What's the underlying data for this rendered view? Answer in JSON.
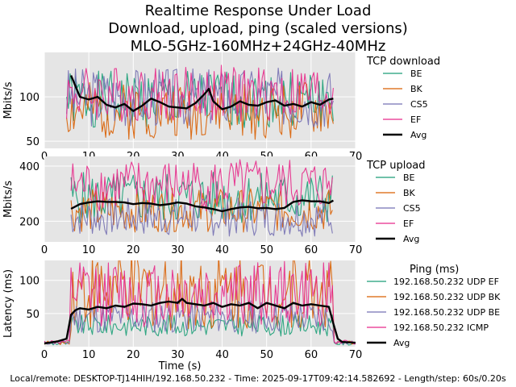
{
  "title_lines": [
    "Realtime Response Under Load",
    "Download, upload, ping (scaled versions)",
    "MLO-5GHz-160MHz+24GHz-40MHz"
  ],
  "footer": "Local/remote: DESKTOP-TJ14HIH/192.168.50.232 - Time: 2025-09-17T09:42:14.582692 - Length/step: 60s/0.20s",
  "colors": {
    "BE": "#1b9e77",
    "BK": "#d95f02",
    "CS5": "#7570b3",
    "EF": "#e7298a",
    "Avg": "#000000",
    "plot_bg": "#e5e5e5",
    "grid": "#ffffff"
  },
  "chart_data": [
    {
      "type": "line",
      "ylabel": "Mbits/s",
      "xlabel": "",
      "xlim": [
        0,
        70
      ],
      "ylim": [
        42,
        150
      ],
      "xticks": [
        0,
        10,
        20,
        30,
        40,
        50,
        60,
        70
      ],
      "yticks": [
        50,
        100
      ],
      "grid": true,
      "legend": {
        "title": "TCP download",
        "placement": "right"
      },
      "series": [
        {
          "name": "BE",
          "color": "#1b9e77",
          "x_start": 5,
          "x_end": 65,
          "base": 97,
          "amp": 32,
          "seed": 1
        },
        {
          "name": "BK",
          "color": "#d95f02",
          "x_start": 5,
          "x_end": 65,
          "base": 84,
          "amp": 32,
          "seed": 2
        },
        {
          "name": "CS5",
          "color": "#7570b3",
          "x_start": 5,
          "x_end": 65,
          "base": 100,
          "amp": 34,
          "seed": 3
        },
        {
          "name": "EF",
          "color": "#e7298a",
          "x_start": 5,
          "x_end": 65,
          "base": 104,
          "amp": 32,
          "seed": 4
        },
        {
          "name": "Avg",
          "color": "#000000",
          "width": 2.4,
          "x": [
            6,
            8,
            10,
            12,
            14,
            16,
            18,
            20,
            22,
            24,
            26,
            28,
            30,
            32,
            34,
            36,
            37,
            38,
            40,
            42,
            44,
            46,
            48,
            50,
            52,
            54,
            56,
            58,
            60,
            62,
            64,
            65
          ],
          "y": [
            124,
            100,
            97,
            100,
            91,
            88,
            92,
            84,
            90,
            98,
            94,
            89,
            88,
            87,
            93,
            103,
            109,
            95,
            86,
            89,
            95,
            91,
            90,
            94,
            96,
            90,
            92,
            89,
            94,
            91,
            97,
            98
          ]
        }
      ]
    },
    {
      "type": "line",
      "ylabel": "Mbits/s",
      "xlabel": "",
      "xlim": [
        0,
        70
      ],
      "ylim": [
        125,
        435
      ],
      "xticks": [
        0,
        10,
        20,
        30,
        40,
        50,
        60,
        70
      ],
      "yticks": [
        200,
        400
      ],
      "grid": true,
      "legend": {
        "title": "TCP upload",
        "placement": "right"
      },
      "series": [
        {
          "name": "BE",
          "color": "#1b9e77",
          "x_start": 6,
          "x_end": 65,
          "base": 285,
          "amp": 95,
          "seed": 5
        },
        {
          "name": "BK",
          "color": "#d95f02",
          "x_start": 6,
          "x_end": 65,
          "base": 240,
          "amp": 80,
          "seed": 6
        },
        {
          "name": "CS5",
          "color": "#7570b3",
          "x_start": 6,
          "x_end": 65,
          "base": 215,
          "amp": 70,
          "seed": 7
        },
        {
          "name": "EF",
          "color": "#e7298a",
          "x_start": 6,
          "x_end": 65,
          "base": 330,
          "amp": 95,
          "seed": 8
        },
        {
          "name": "Avg",
          "color": "#000000",
          "width": 2.4,
          "x": [
            6,
            8,
            10,
            12,
            14,
            16,
            18,
            20,
            22,
            24,
            26,
            28,
            30,
            32,
            34,
            36,
            38,
            40,
            42,
            44,
            46,
            48,
            50,
            52,
            54,
            56,
            58,
            60,
            62,
            64,
            65
          ],
          "y": [
            245,
            262,
            268,
            272,
            270,
            270,
            268,
            262,
            266,
            264,
            258,
            262,
            268,
            264,
            254,
            250,
            244,
            236,
            244,
            250,
            252,
            247,
            248,
            244,
            248,
            270,
            276,
            272,
            272,
            266,
            275
          ]
        }
      ]
    },
    {
      "type": "line",
      "ylabel": "Latency (ms)",
      "xlabel": "Time (s)",
      "xlim": [
        0,
        70
      ],
      "ylim": [
        0,
        130
      ],
      "xticks": [
        0,
        10,
        20,
        30,
        40,
        50,
        60,
        70
      ],
      "yticks": [
        50,
        100
      ],
      "grid": true,
      "legend": {
        "title": "Ping (ms)",
        "placement": "right"
      },
      "series": [
        {
          "name": "192.168.50.232 UDP EF",
          "color": "#1b9e77",
          "x_start": 0,
          "x_end": 70,
          "idle": 5,
          "base": 32,
          "amp": 16,
          "seed": 9
        },
        {
          "name": "192.168.50.232 UDP BK",
          "color": "#d95f02",
          "x_start": 0,
          "x_end": 70,
          "idle": 6,
          "base": 85,
          "amp": 60,
          "seed": 10
        },
        {
          "name": "192.168.50.232 UDP BE",
          "color": "#7570b3",
          "x_start": 0,
          "x_end": 70,
          "idle": 6,
          "base": 45,
          "amp": 25,
          "seed": 11
        },
        {
          "name": "192.168.50.232 ICMP",
          "color": "#e7298a",
          "x_start": 0,
          "x_end": 70,
          "idle": 7,
          "base": 80,
          "amp": 50,
          "seed": 12
        },
        {
          "name": "Avg",
          "color": "#000000",
          "width": 2.4,
          "x": [
            0,
            3,
            5,
            6,
            7,
            8,
            10,
            12,
            14,
            16,
            18,
            20,
            22,
            24,
            26,
            28,
            30,
            31,
            32,
            34,
            36,
            38,
            40,
            42,
            44,
            46,
            48,
            50,
            52,
            54,
            56,
            58,
            60,
            62,
            64,
            65,
            66,
            67,
            70
          ],
          "y": [
            5,
            8,
            12,
            48,
            55,
            58,
            56,
            60,
            58,
            62,
            60,
            65,
            64,
            62,
            66,
            68,
            66,
            72,
            66,
            64,
            62,
            66,
            60,
            64,
            62,
            66,
            58,
            66,
            62,
            58,
            66,
            62,
            64,
            62,
            60,
            35,
            12,
            7,
            6
          ]
        }
      ]
    }
  ]
}
